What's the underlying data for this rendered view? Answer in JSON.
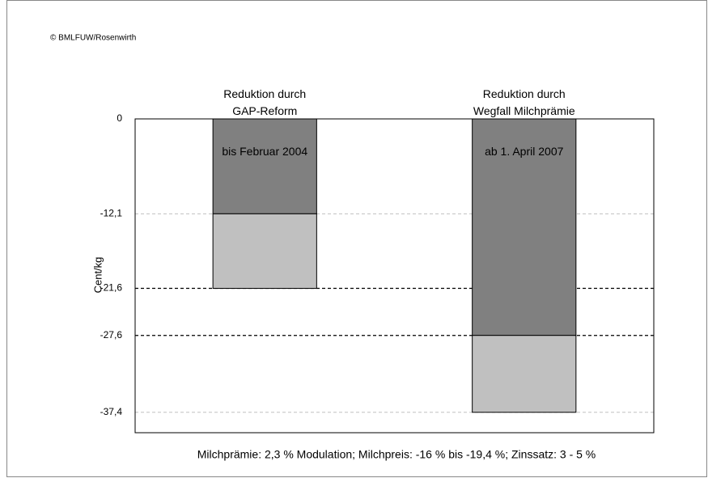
{
  "chart_data": {
    "type": "stacked_bar",
    "source": "© BMLFUW/Rosenwirth",
    "categories": [
      "Reduktion durch\nGAP-Reform",
      "Reduktion durch\nWegfall Milchprämie"
    ],
    "category_notes": [
      "bis Februar 2004",
      "ab 1. April 2007"
    ],
    "y_label": "Cent/kg",
    "footnote": "Milchprämie: 2,3 % Modulation; Milchpreis: -16 % bis -19,4 %; Zinssatz: 3 - 5 %",
    "series": [
      {
        "color": "#808080",
        "values": [
          -12.1,
          -27.6
        ]
      },
      {
        "color": "#c0c0c0",
        "values": [
          -9.5,
          -9.8
        ]
      }
    ],
    "ylim": [
      -40,
      0
    ],
    "yticks": [
      0,
      {
        "value": -12.1,
        "label": "-12,1",
        "grid_color": "#c0c0c0"
      },
      {
        "value": -21.6,
        "label": "-21,6",
        "grid_color": "#000000"
      },
      {
        "value": -27.6,
        "label": "-27,6",
        "grid_color": "#000000"
      },
      {
        "value": -37.4,
        "label": "-37,4",
        "grid_color": "#c0c0c0"
      }
    ]
  }
}
